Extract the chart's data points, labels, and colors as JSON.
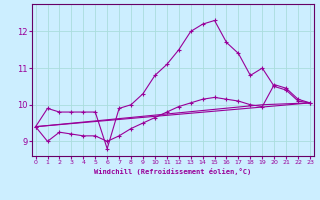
{
  "xlabel": "Windchill (Refroidissement éolien,°C)",
  "background_color": "#cceeff",
  "grid_color": "#aadddd",
  "line_color": "#990099",
  "spine_color": "#660066",
  "x_ticks": [
    0,
    1,
    2,
    3,
    4,
    5,
    6,
    7,
    8,
    9,
    10,
    11,
    12,
    13,
    14,
    15,
    16,
    17,
    18,
    19,
    20,
    21,
    22,
    23
  ],
  "y_ticks": [
    9,
    10,
    11,
    12
  ],
  "ylim": [
    8.6,
    12.75
  ],
  "xlim": [
    -0.3,
    23.3
  ],
  "lines": [
    {
      "x": [
        0,
        1,
        2,
        3,
        4,
        5,
        6,
        7,
        8,
        9,
        10,
        11,
        12,
        13,
        14,
        15,
        16,
        17,
        18,
        19,
        20,
        21,
        22,
        23
      ],
      "y": [
        9.4,
        9.9,
        9.8,
        9.8,
        9.8,
        9.8,
        8.8,
        9.9,
        10.0,
        10.3,
        10.8,
        11.1,
        11.5,
        12.0,
        12.2,
        12.3,
        11.7,
        11.4,
        10.8,
        11.0,
        10.5,
        10.4,
        10.1,
        10.05
      ],
      "marker": true
    },
    {
      "x": [
        0,
        1,
        2,
        3,
        4,
        5,
        6,
        7,
        8,
        9,
        10,
        11,
        12,
        13,
        14,
        15,
        16,
        17,
        18,
        19,
        20,
        21,
        22,
        23
      ],
      "y": [
        9.4,
        9.0,
        9.25,
        9.2,
        9.15,
        9.15,
        9.0,
        9.15,
        9.35,
        9.5,
        9.65,
        9.8,
        9.95,
        10.05,
        10.15,
        10.2,
        10.15,
        10.1,
        10.0,
        9.95,
        10.55,
        10.45,
        10.15,
        10.05
      ],
      "marker": true
    },
    {
      "x": [
        0,
        23
      ],
      "y": [
        9.4,
        10.05
      ],
      "marker": false
    },
    {
      "x": [
        0,
        19,
        23
      ],
      "y": [
        9.4,
        10.0,
        10.05
      ],
      "marker": false
    }
  ]
}
